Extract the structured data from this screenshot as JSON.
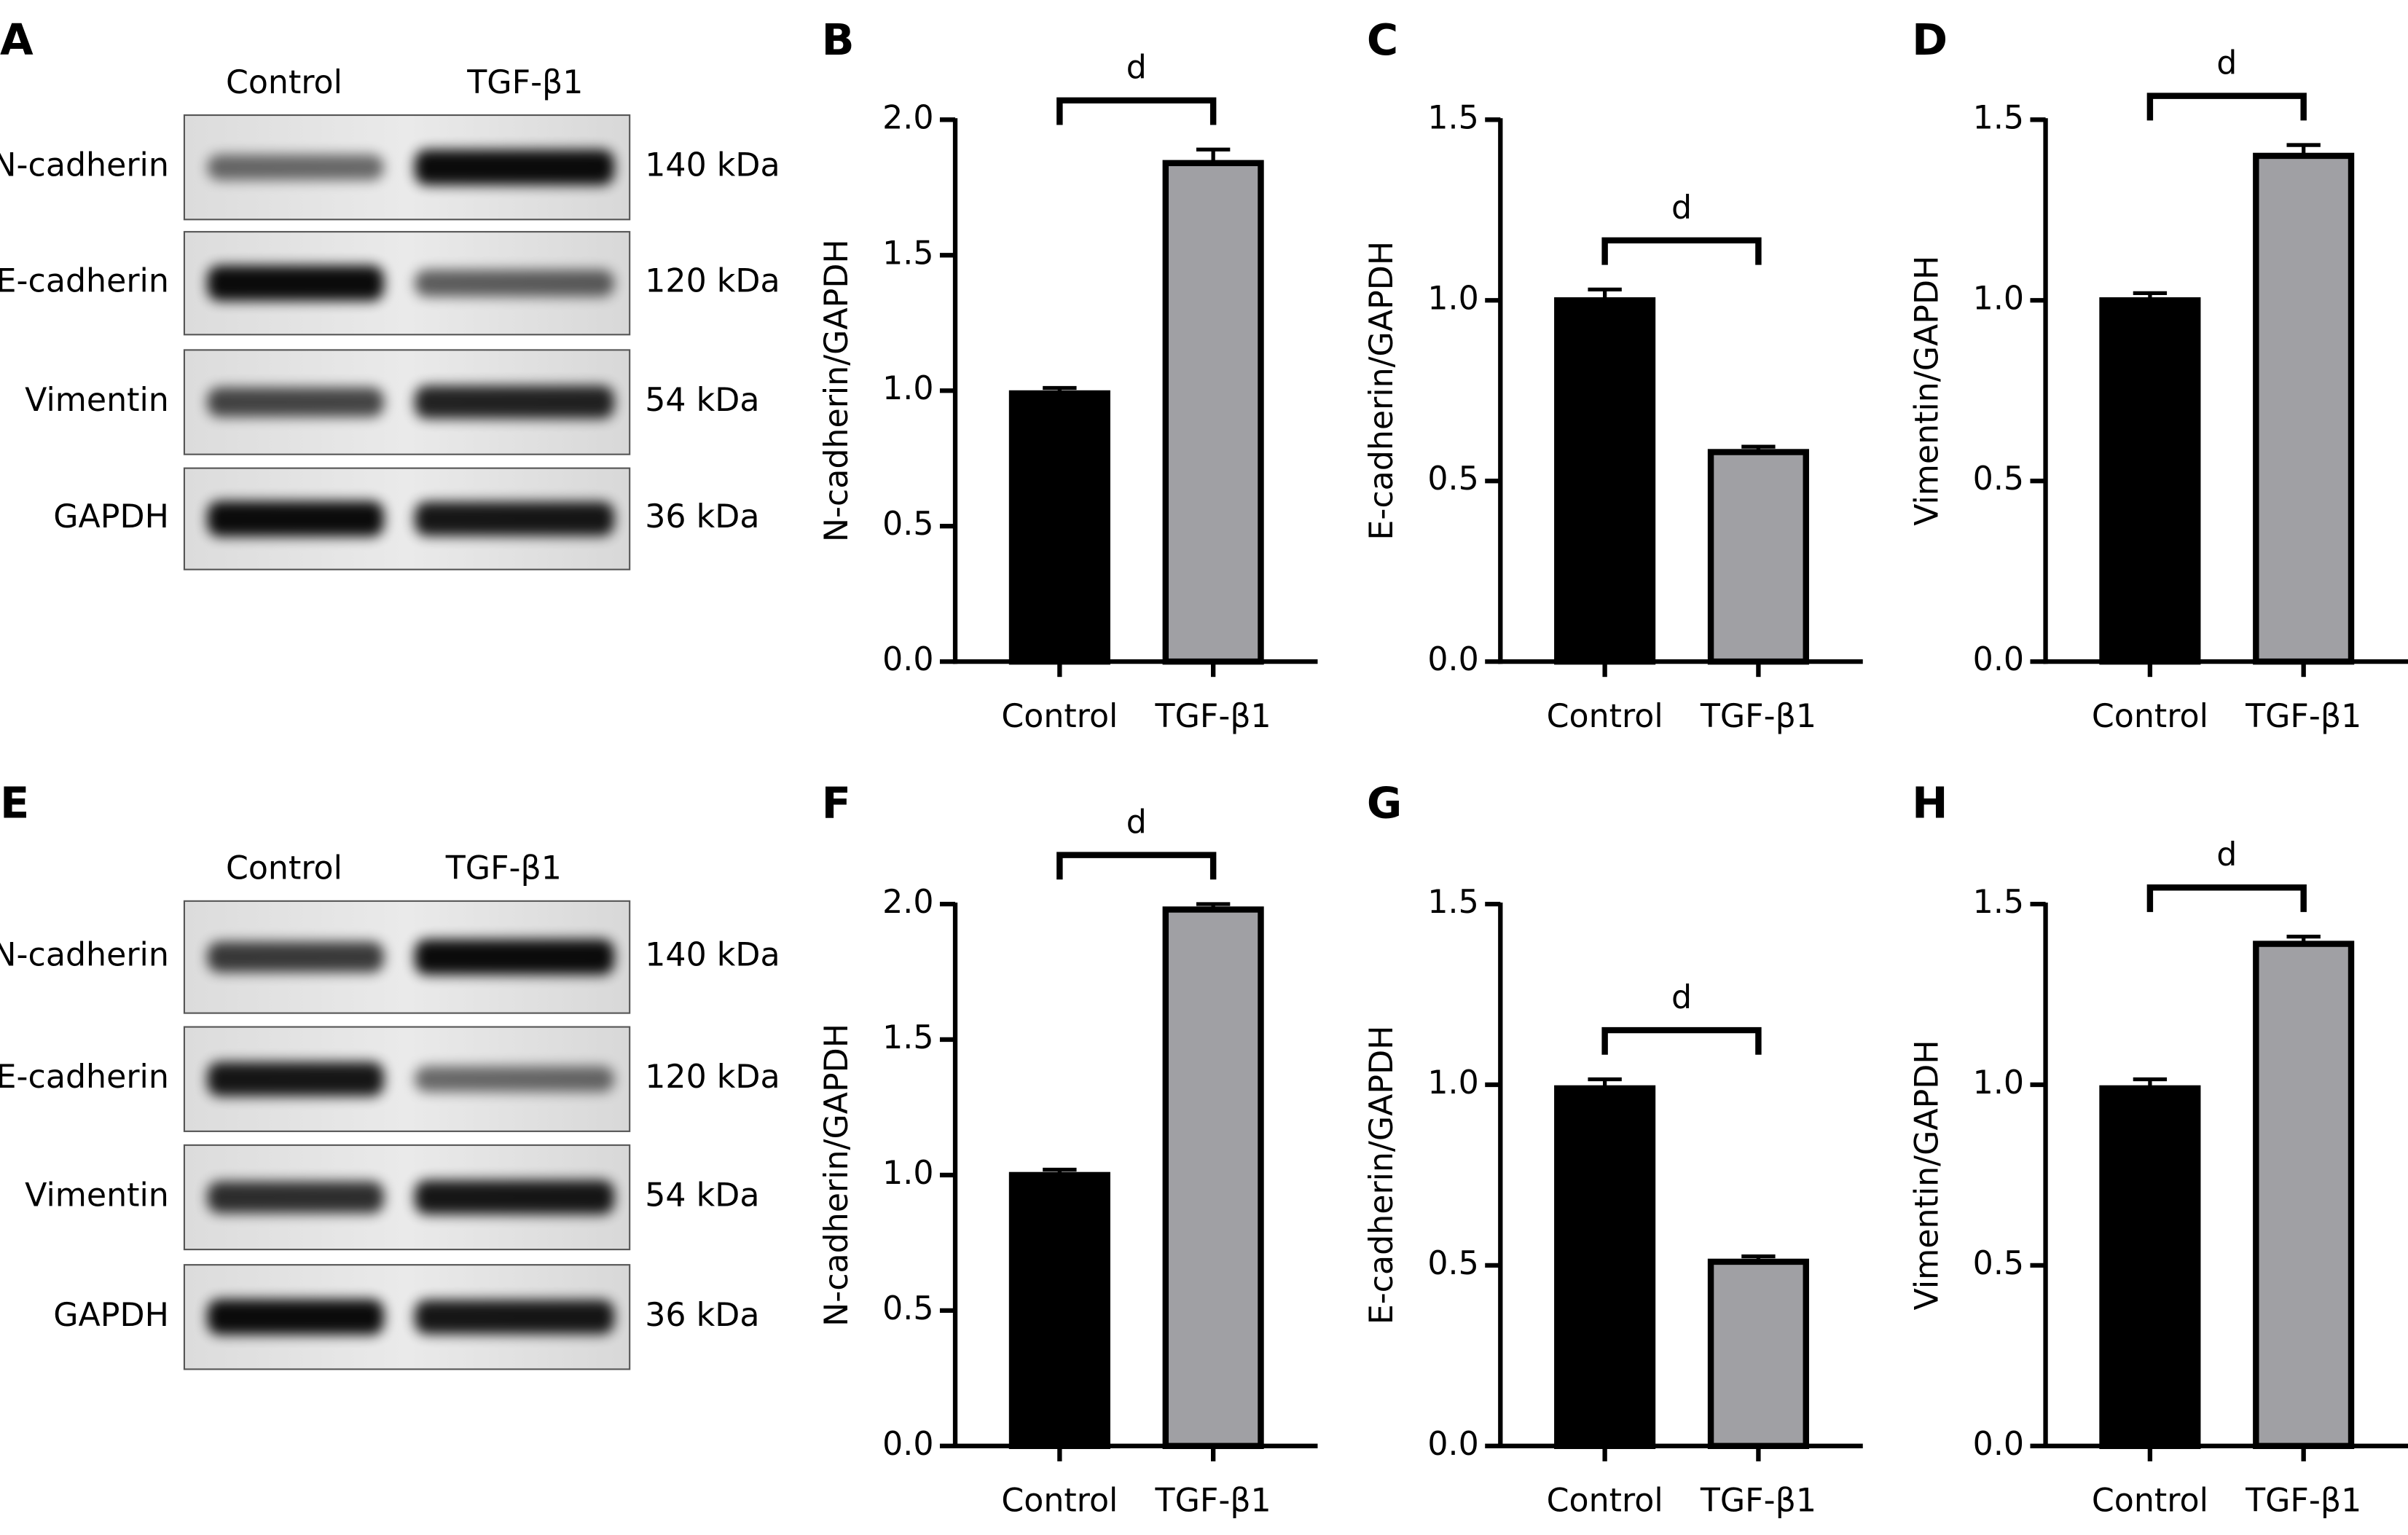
{
  "blots": [
    {
      "panel": "A",
      "columns": [
        "Control",
        "TGF-β1"
      ],
      "rows": [
        {
          "protein": "N-cadherin",
          "size": "140 kDa"
        },
        {
          "protein": "E-cadherin",
          "size": "120 kDa"
        },
        {
          "protein": "Vimentin",
          "size": "54 kDa"
        },
        {
          "protein": "GAPDH",
          "size": "36 kDa"
        }
      ]
    },
    {
      "panel": "E",
      "columns": [
        "Control",
        "TGF-β1"
      ],
      "rows": [
        {
          "protein": "N-cadherin",
          "size": "140 kDa"
        },
        {
          "protein": "E-cadherin",
          "size": "120 kDa"
        },
        {
          "protein": "Vimentin",
          "size": "54 kDa"
        },
        {
          "protein": "GAPDH",
          "size": "36 kDa"
        }
      ]
    }
  ],
  "chart_data": [
    {
      "type": "bar",
      "panel": "B",
      "ylabel": "N-cadherin/GAPDH",
      "categories": [
        "Control",
        "TGF-β1"
      ],
      "values": [
        0.99,
        1.84
      ],
      "errors": [
        0.02,
        0.05
      ],
      "colors": [
        "#000000",
        "#a0a0a4"
      ],
      "ylim": [
        0,
        2
      ],
      "yticks": [
        {
          "value": 0,
          "label": "0.0"
        },
        0.5,
        {
          "value": 1,
          "label": "1.0"
        },
        1.5,
        {
          "value": 2,
          "label": "2.0"
        }
      ],
      "significance": "d"
    },
    {
      "type": "bar",
      "panel": "C",
      "ylabel": "E-cadherin/GAPDH",
      "categories": [
        "Control",
        "TGF-β1"
      ],
      "values": [
        1.0,
        0.58
      ],
      "errors": [
        0.03,
        0.015
      ],
      "colors": [
        "#000000",
        "#a0a0a4"
      ],
      "ylim": [
        0,
        1.5
      ],
      "yticks": [
        {
          "value": 0,
          "label": "0.0"
        },
        0.5,
        {
          "value": 1,
          "label": "1.0"
        },
        1.5
      ],
      "significance": "d"
    },
    {
      "type": "bar",
      "panel": "D",
      "ylabel": "Vimentin/GAPDH",
      "categories": [
        "Control",
        "TGF-β1"
      ],
      "values": [
        1.0,
        1.4
      ],
      "errors": [
        0.02,
        0.03
      ],
      "colors": [
        "#000000",
        "#a0a0a4"
      ],
      "ylim": [
        0,
        1.5
      ],
      "yticks": [
        {
          "value": 0,
          "label": "0.0"
        },
        0.5,
        {
          "value": 1,
          "label": "1.0"
        },
        1.5
      ],
      "significance": "d"
    },
    {
      "type": "bar",
      "panel": "F",
      "ylabel": "N-cadherin/GAPDH",
      "categories": [
        "Control",
        "TGF-β1"
      ],
      "values": [
        1.0,
        1.98
      ],
      "errors": [
        0.02,
        0.02
      ],
      "colors": [
        "#000000",
        "#a0a0a4"
      ],
      "ylim": [
        0,
        2
      ],
      "yticks": [
        {
          "value": 0,
          "label": "0.0"
        },
        0.5,
        {
          "value": 1,
          "label": "1.0"
        },
        1.5,
        {
          "value": 2,
          "label": "2.0"
        }
      ],
      "significance": "d"
    },
    {
      "type": "bar",
      "panel": "G",
      "ylabel": "E-cadherin/GAPDH",
      "categories": [
        "Control",
        "TGF-β1"
      ],
      "values": [
        0.99,
        0.51
      ],
      "errors": [
        0.025,
        0.015
      ],
      "colors": [
        "#000000",
        "#a0a0a4"
      ],
      "ylim": [
        0,
        1.5
      ],
      "yticks": [
        {
          "value": 0,
          "label": "0.0"
        },
        0.5,
        {
          "value": 1,
          "label": "1.0"
        },
        1.5
      ],
      "significance": "d"
    },
    {
      "type": "bar",
      "panel": "H",
      "ylabel": "Vimentin/GAPDH",
      "categories": [
        "Control",
        "TGF-β1"
      ],
      "values": [
        0.99,
        1.39
      ],
      "errors": [
        0.025,
        0.02
      ],
      "colors": [
        "#000000",
        "#a0a0a4"
      ],
      "ylim": [
        0,
        1.5
      ],
      "yticks": [
        {
          "value": 0,
          "label": "0.0"
        },
        0.5,
        {
          "value": 1,
          "label": "1.0"
        },
        1.5
      ],
      "significance": "d"
    }
  ]
}
